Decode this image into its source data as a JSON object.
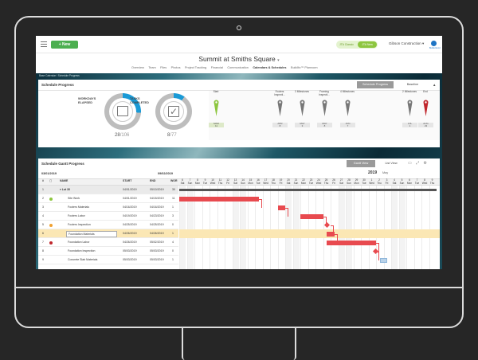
{
  "topbar": {
    "new_label": "+ New",
    "classic_label": "JTA Classic",
    "new_toggle": "JTA New",
    "company": "Gibson Construction ▾",
    "logo_text": "Buildertrend"
  },
  "project": {
    "title": "Summit at Smiths Square",
    "caret": "▾"
  },
  "tabs": [
    "Overview",
    "Team",
    "Files",
    "Photos",
    "Project Tracking",
    "Financial",
    "Communication",
    "Calendars & Schedules",
    "BuildItx™ Planroom"
  ],
  "active_tab": "Calendars & Schedules",
  "breadcrumb": "Base Calendar / Schedule Progress",
  "schedule_progress": {
    "title": "Schedule Progress",
    "btn_progress": "Schedule Progress",
    "btn_baseline": "Baseline",
    "collapse": "▲",
    "workdays": {
      "label1": "WORKDAYS",
      "label2": "ELAPSED",
      "count": "28",
      "total": "/106",
      "fraction": 0.26
    },
    "tasks": {
      "label1": "TASKS",
      "label2": "COMPLETED",
      "count": "8",
      "total": "/77",
      "fraction": 0.1
    },
    "milestones": [
      {
        "label": "Start",
        "month": "MAR",
        "day": "11",
        "color": "#8dc63f"
      },
      {
        "label": "Footers Inspecti...",
        "month": "APR",
        "day": "8",
        "color": "#777"
      },
      {
        "label": "3 Milestones",
        "month": "MAY",
        "day": "3",
        "color": "#777"
      },
      {
        "label": "Framing Inspecti...",
        "month": "MAY",
        "day": "8",
        "color": "#777"
      },
      {
        "label": "4 Milestones",
        "month": "JUN",
        "day": "7",
        "color": "#777"
      },
      {
        "label": "2 Milestones",
        "month": "JUL",
        "day": "1",
        "color": "#777"
      },
      {
        "label": "End",
        "month": "AUG",
        "day": "23",
        "color": "#c0272d"
      }
    ]
  },
  "gantt": {
    "title": "Schedule Gantt Progress",
    "btn_gantt": "Gantt View",
    "btn_list": "List View",
    "icons": "▭ ⤢ ⚙",
    "start_date": "03/01/2019",
    "end_date": "09/02/2019",
    "year": "2019",
    "month": "May",
    "columns": {
      "num": "#",
      "name": "NAME",
      "start": "START",
      "end": "END",
      "work": "WOR"
    },
    "days_num": [
      "6",
      "7",
      "8",
      "9",
      "10",
      "11",
      "12",
      "13",
      "14",
      "15",
      "16",
      "17",
      "18",
      "19",
      "20",
      "21",
      "22",
      "23",
      "24",
      "25",
      "26",
      "27",
      "28",
      "29",
      "30",
      "1",
      "2",
      "3",
      "4",
      "5",
      "6",
      "7",
      "8",
      "9"
    ],
    "days_name": [
      "Sat",
      "Sun",
      "Mon",
      "Tue",
      "Wed",
      "Thu",
      "Fri",
      "Sat",
      "Sun",
      "Mon",
      "Tue",
      "Wed",
      "Thu",
      "Fri",
      "Sat",
      "Sun",
      "Mon",
      "Tue",
      "Wed",
      "Thu",
      "Fri",
      "Sat",
      "Sun",
      "Mon",
      "Tue",
      "Wed",
      "Thu",
      "Fri",
      "Sat",
      "Sun",
      "Mon",
      "Tue",
      "Wed",
      "Thu"
    ],
    "rows": [
      {
        "num": "1",
        "name": "▾ Lot 30",
        "start": "04/01/2019",
        "end": "05/10/2019",
        "work": "30",
        "dot": ""
      },
      {
        "num": "2",
        "name": "Site Work",
        "start": "04/01/2019",
        "end": "04/15/2019",
        "work": "11",
        "dot": "#8dc63f"
      },
      {
        "num": "3",
        "name": "Footers Materials",
        "start": "04/16/2019",
        "end": "04/16/2019",
        "work": "1",
        "dot": ""
      },
      {
        "num": "4",
        "name": "Footers Labor",
        "start": "04/19/2019",
        "end": "04/23/2019",
        "work": "3",
        "dot": ""
      },
      {
        "num": "5",
        "name": "Footers Inspection",
        "start": "04/25/2019",
        "end": "04/25/2019",
        "work": "0",
        "dot": "#f0a030"
      },
      {
        "num": "6",
        "name": "Foundation Materials",
        "start": "04/26/2019",
        "end": "04/26/2019",
        "work": "1",
        "dot": ""
      },
      {
        "num": "7",
        "name": "Foundation Labor",
        "start": "04/26/2019",
        "end": "05/02/2019",
        "work": "4",
        "dot": "#c0272d"
      },
      {
        "num": "8",
        "name": "Foundation Inspection",
        "start": "05/03/2019",
        "end": "05/03/2019",
        "work": "0",
        "dot": ""
      },
      {
        "num": "9",
        "name": "Concrete Slab Materials",
        "start": "05/03/2019",
        "end": "05/03/2019",
        "work": "1",
        "dot": ""
      }
    ]
  }
}
